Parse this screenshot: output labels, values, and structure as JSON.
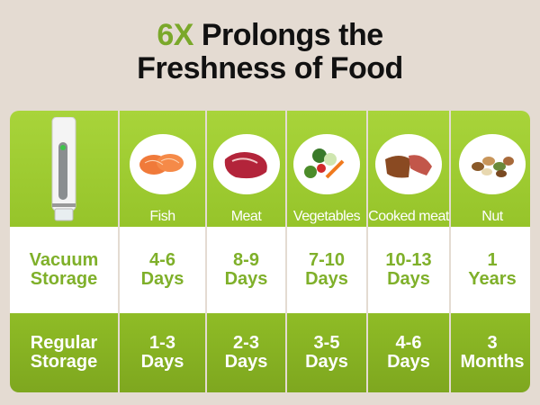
{
  "title": {
    "accent": "6X",
    "line1_rest": " Prolongs the",
    "line2": "Freshness of Food"
  },
  "colors": {
    "accent_green": "#7aa82a",
    "header_green": "#a8d43a",
    "row_green": "#8fbc26",
    "background": "#e4dbd2"
  },
  "device_icon": "vacuum-sealer-device",
  "foods": [
    {
      "label": "Fish",
      "icon": "salmon-slices"
    },
    {
      "label": "Meat",
      "icon": "raw-steak"
    },
    {
      "label": "Vegetables",
      "icon": "vegetables"
    },
    {
      "label": "Cooked meat",
      "icon": "cooked-steak"
    },
    {
      "label": "Nut",
      "icon": "mixed-nuts"
    }
  ],
  "rows": [
    {
      "label": [
        "Vacuum",
        "Storage"
      ],
      "values": [
        [
          "4-6",
          "Days"
        ],
        [
          "8-9",
          "Days"
        ],
        [
          "7-10",
          "Days"
        ],
        [
          "10-13",
          "Days"
        ],
        [
          "1",
          "Years"
        ]
      ]
    },
    {
      "label": [
        "Regular",
        "Storage"
      ],
      "values": [
        [
          "1-3",
          "Days"
        ],
        [
          "2-3",
          "Days"
        ],
        [
          "3-5",
          "Days"
        ],
        [
          "4-6",
          "Days"
        ],
        [
          "3",
          "Months"
        ]
      ]
    }
  ]
}
